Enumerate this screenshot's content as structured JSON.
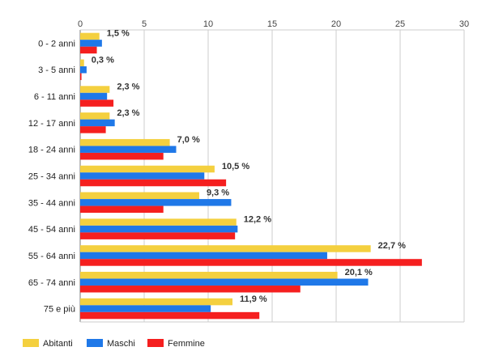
{
  "chart_data": {
    "type": "bar",
    "orientation": "horizontal",
    "categories": [
      "0 - 2 anni",
      "3 - 5 anni",
      "6 - 11 anni",
      "12 - 17 anni",
      "18 - 24 anni",
      "25 - 34 anni",
      "35 - 44 anni",
      "45 - 54 anni",
      "55 - 64 anni",
      "65 - 74 anni",
      "75 e più"
    ],
    "series": [
      {
        "name": "Abitanti",
        "color": "#f4d03f",
        "values": [
          1.5,
          0.3,
          2.3,
          2.3,
          7.0,
          10.5,
          9.3,
          12.2,
          22.7,
          20.1,
          11.9
        ]
      },
      {
        "name": "Maschi",
        "color": "#1f78e8",
        "values": [
          1.7,
          0.5,
          2.1,
          2.7,
          7.5,
          9.7,
          11.8,
          12.3,
          19.3,
          22.5,
          10.2
        ]
      },
      {
        "name": "Femmine",
        "color": "#f51f1f",
        "values": [
          1.3,
          0.1,
          2.6,
          2.0,
          6.5,
          11.4,
          6.5,
          12.1,
          26.7,
          17.2,
          14.0
        ]
      }
    ],
    "data_labels": [
      "1,5 %",
      "0,3 %",
      "2,3 %",
      "2,3 %",
      "7,0 %",
      "10,5 %",
      "9,3 %",
      "12,2 %",
      "22,7 %",
      "20,1 %",
      "11,9 %"
    ],
    "x_ticks": [
      "0",
      "5",
      "10",
      "15",
      "20",
      "25",
      "30"
    ],
    "xlim": [
      0,
      30
    ],
    "grid": true,
    "legend_position": "bottom-left",
    "title": "",
    "xlabel": "",
    "ylabel": ""
  }
}
